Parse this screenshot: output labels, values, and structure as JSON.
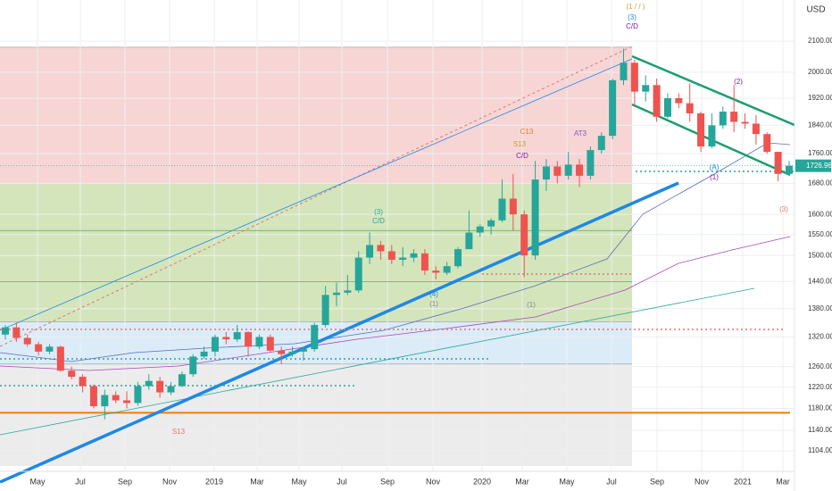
{
  "chart_data": {
    "type": "candlestick",
    "currency": "USD",
    "log_scale": true,
    "ylim": [
      1078,
      2240
    ],
    "yticks": [
      {
        "value": 2100,
        "label": "2100.00"
      },
      {
        "value": 2000,
        "label": "2000.00"
      },
      {
        "value": 1920,
        "label": "1920.00"
      },
      {
        "value": 1840,
        "label": "1840.00"
      },
      {
        "value": 1760,
        "label": "1760.00"
      },
      {
        "value": 1680,
        "label": "1680.00"
      },
      {
        "value": 1600,
        "label": "1600.00"
      },
      {
        "value": 1550,
        "label": "1550.00"
      },
      {
        "value": 1500,
        "label": "1500.00"
      },
      {
        "value": 1440,
        "label": "1440.00"
      },
      {
        "value": 1380,
        "label": "1380.00"
      },
      {
        "value": 1320,
        "label": "1320.00"
      },
      {
        "value": 1260,
        "label": "1260.00"
      },
      {
        "value": 1220,
        "label": "1220.00"
      },
      {
        "value": 1180,
        "label": "1180.00"
      },
      {
        "value": 1140,
        "label": "1140.00"
      },
      {
        "value": 1104,
        "label": "1104.00"
      }
    ],
    "xticks": [
      "May",
      "Jul",
      "Sep",
      "Nov",
      "2019",
      "Mar",
      "May",
      "Jul",
      "Sep",
      "Nov",
      "2020",
      "Mar",
      "May",
      "Jul",
      "Sep",
      "Nov",
      "2021",
      "Mar"
    ],
    "grid": true,
    "up_color": "#26a69a",
    "down_color": "#ef5350",
    "last_price": 1726.96,
    "zones": [
      {
        "from": 2080,
        "to": 1680,
        "color": "#f4c7c7"
      },
      {
        "from": 1680,
        "to": 1352,
        "color": "#c5dca4"
      },
      {
        "from": 1352,
        "to": 1265,
        "color": "#cfe6f6"
      },
      {
        "from": 1265,
        "to": 1078,
        "color": "#e6e6e6"
      }
    ],
    "levels": [
      {
        "value": 1560,
        "color": "#4caf50"
      },
      {
        "value": 1440,
        "color": "#4caf50"
      },
      {
        "value": 1172,
        "color": "#f57c00"
      }
    ],
    "annotations": [
      "(1 / / )",
      "(3)",
      "C/D",
      "C13",
      "S13",
      "C/D",
      "AT3",
      "(3)",
      "C/D",
      "(4)",
      "(1)",
      "(A)",
      "(1)",
      "(2)",
      "(3)",
      "S13",
      "(1)"
    ],
    "ohlc": [
      [
        1325,
        1345,
        1315,
        1340
      ],
      [
        1340,
        1350,
        1310,
        1318
      ],
      [
        1318,
        1325,
        1300,
        1305
      ],
      [
        1305,
        1310,
        1282,
        1290
      ],
      [
        1290,
        1305,
        1285,
        1300
      ],
      [
        1300,
        1302,
        1250,
        1252
      ],
      [
        1252,
        1260,
        1235,
        1240
      ],
      [
        1240,
        1245,
        1210,
        1222
      ],
      [
        1222,
        1225,
        1180,
        1184
      ],
      [
        1184,
        1215,
        1160,
        1205
      ],
      [
        1205,
        1212,
        1190,
        1195
      ],
      [
        1195,
        1212,
        1180,
        1190
      ],
      [
        1190,
        1230,
        1185,
        1222
      ],
      [
        1222,
        1245,
        1215,
        1232
      ],
      [
        1232,
        1240,
        1200,
        1210
      ],
      [
        1210,
        1230,
        1205,
        1222
      ],
      [
        1222,
        1250,
        1220,
        1245
      ],
      [
        1245,
        1285,
        1240,
        1280
      ],
      [
        1280,
        1300,
        1275,
        1290
      ],
      [
        1290,
        1325,
        1280,
        1320
      ],
      [
        1320,
        1330,
        1305,
        1315
      ],
      [
        1315,
        1345,
        1310,
        1330
      ],
      [
        1330,
        1332,
        1280,
        1300
      ],
      [
        1300,
        1325,
        1295,
        1320
      ],
      [
        1320,
        1325,
        1290,
        1292
      ],
      [
        1292,
        1300,
        1265,
        1285
      ],
      [
        1285,
        1300,
        1280,
        1290
      ],
      [
        1290,
        1300,
        1272,
        1295
      ],
      [
        1295,
        1350,
        1290,
        1345
      ],
      [
        1345,
        1430,
        1340,
        1410
      ],
      [
        1410,
        1438,
        1385,
        1415
      ],
      [
        1415,
        1455,
        1410,
        1420
      ],
      [
        1420,
        1510,
        1415,
        1495
      ],
      [
        1495,
        1555,
        1480,
        1525
      ],
      [
        1525,
        1535,
        1490,
        1510
      ],
      [
        1510,
        1525,
        1480,
        1490
      ],
      [
        1490,
        1520,
        1475,
        1495
      ],
      [
        1495,
        1515,
        1485,
        1505
      ],
      [
        1505,
        1515,
        1455,
        1465
      ],
      [
        1465,
        1475,
        1445,
        1460
      ],
      [
        1460,
        1485,
        1455,
        1475
      ],
      [
        1475,
        1520,
        1470,
        1515
      ],
      [
        1515,
        1610,
        1515,
        1555
      ],
      [
        1555,
        1575,
        1545,
        1570
      ],
      [
        1570,
        1590,
        1550,
        1585
      ],
      [
        1585,
        1690,
        1580,
        1640
      ],
      [
        1640,
        1705,
        1560,
        1600
      ],
      [
        1600,
        1610,
        1450,
        1500
      ],
      [
        1500,
        1740,
        1490,
        1690
      ],
      [
        1690,
        1745,
        1660,
        1725
      ],
      [
        1725,
        1740,
        1680,
        1700
      ],
      [
        1700,
        1765,
        1690,
        1730
      ],
      [
        1730,
        1745,
        1670,
        1700
      ],
      [
        1700,
        1780,
        1690,
        1770
      ],
      [
        1770,
        1820,
        1760,
        1810
      ],
      [
        1810,
        1980,
        1800,
        1975
      ],
      [
        1975,
        2075,
        1960,
        2030
      ],
      [
        2030,
        2040,
        1900,
        1940
      ],
      [
        1940,
        1990,
        1910,
        1960
      ],
      [
        1960,
        1980,
        1850,
        1865
      ],
      [
        1865,
        1935,
        1860,
        1920
      ],
      [
        1920,
        1935,
        1890,
        1905
      ],
      [
        1905,
        1965,
        1850,
        1875
      ],
      [
        1875,
        1880,
        1765,
        1780
      ],
      [
        1780,
        1875,
        1775,
        1840
      ],
      [
        1840,
        1895,
        1830,
        1880
      ],
      [
        1880,
        1960,
        1820,
        1850
      ],
      [
        1850,
        1875,
        1830,
        1845
      ],
      [
        1845,
        1870,
        1785,
        1815
      ],
      [
        1815,
        1820,
        1760,
        1765
      ],
      [
        1765,
        1765,
        1685,
        1705
      ],
      [
        1705,
        1740,
        1700,
        1726.96
      ]
    ]
  }
}
